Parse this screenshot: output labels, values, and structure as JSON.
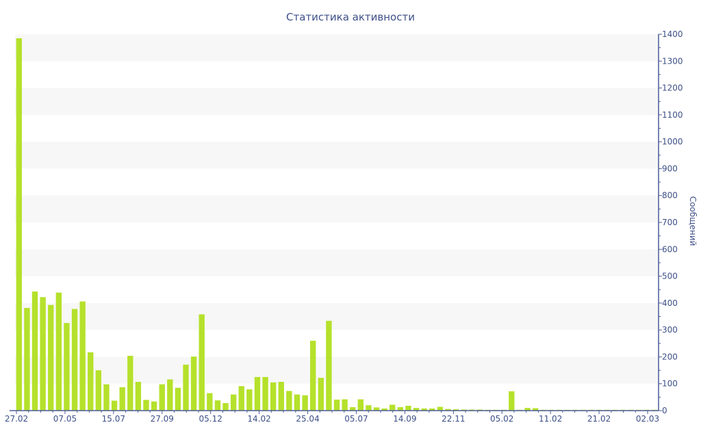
{
  "chart_data": {
    "type": "bar",
    "title": "Статистика активности",
    "ylabel": "Сообщений",
    "ylim": [
      0,
      1400
    ],
    "yticks": [
      "0",
      "100",
      "200",
      "300",
      "400",
      "500",
      "600",
      "700",
      "800",
      "900",
      "1000",
      "1100",
      "1200",
      "1300",
      "1400"
    ],
    "xtick_labels": [
      "27.02",
      "07.05",
      "15.07",
      "27.09",
      "05.12",
      "14.02",
      "25.04",
      "05.07",
      "14.09",
      "22.11",
      "05.02",
      "11.02",
      "21.02",
      "02.03"
    ],
    "values": [
      1385,
      382,
      443,
      422,
      393,
      439,
      326,
      378,
      406,
      217,
      150,
      98,
      37,
      87,
      204,
      107,
      40,
      34,
      98,
      116,
      85,
      171,
      201,
      358,
      65,
      38,
      28,
      60,
      91,
      79,
      125,
      125,
      105,
      107,
      73,
      60,
      57,
      260,
      122,
      334,
      41,
      42,
      13,
      42,
      20,
      12,
      8,
      22,
      13,
      18,
      10,
      8,
      8,
      14,
      6,
      5,
      4,
      4,
      4,
      3,
      3,
      3,
      72,
      3,
      10,
      9,
      3,
      3,
      3,
      3,
      3,
      3,
      3,
      3,
      3,
      3,
      3,
      3,
      3,
      3,
      3
    ],
    "bar_color": "#b5e12b",
    "axis_color": "#4a5a96",
    "grid": "alternating bands",
    "band_color": "#f7f7f7",
    "y_axis_side": "right"
  }
}
